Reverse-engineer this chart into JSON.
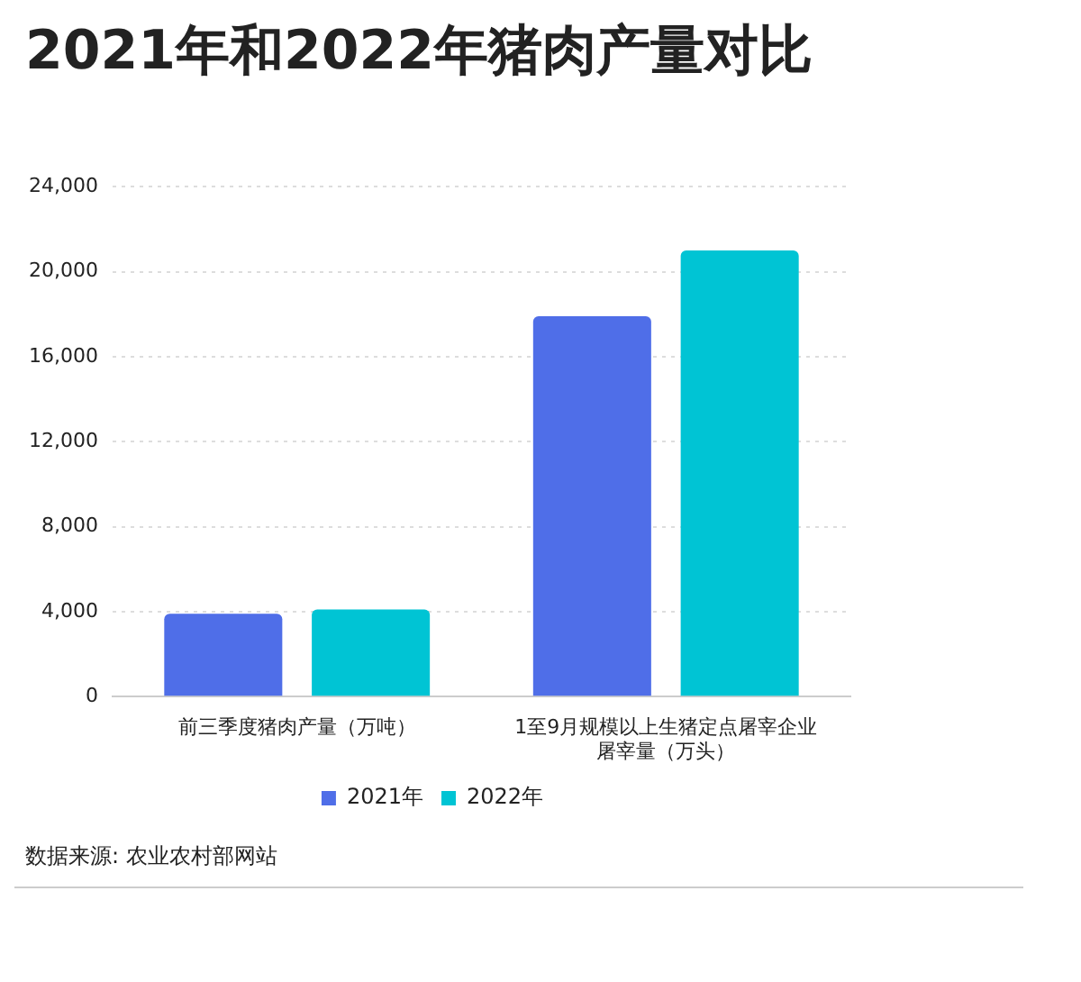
{
  "chart_data": {
    "type": "bar",
    "title": "2021年和2022年猪肉产量对比",
    "categories": [
      "前三季度猪肉产量（万吨）",
      "1至9月规模以上生猪定点屠宰企业屠宰量（万头）"
    ],
    "series": [
      {
        "name": "2021年",
        "color": "#4f6ee8",
        "values": [
          3900,
          17900
        ]
      },
      {
        "name": "2022年",
        "color": "#00c4d4",
        "values": [
          4100,
          21000
        ]
      }
    ],
    "ylim": [
      0,
      24000
    ],
    "yticks": [
      0,
      {
        "value": 4000,
        "label": "4,000"
      },
      {
        "value": 8000,
        "label": "8,000"
      },
      {
        "value": 12000,
        "label": "12,000"
      },
      {
        "value": 16000,
        "label": "16,000"
      },
      {
        "value": 20000,
        "label": "20,000"
      },
      {
        "value": 24000,
        "label": "24,000"
      }
    ],
    "grid": "y",
    "legend": "bottom",
    "annotations": [
      "数据来源: 农业农村部网站"
    ]
  }
}
